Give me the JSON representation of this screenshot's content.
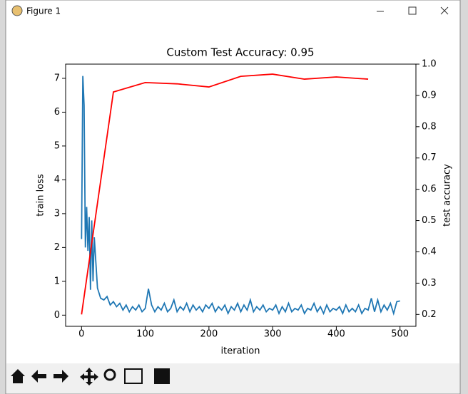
{
  "window": {
    "title": "Figure 1"
  },
  "chart_data": {
    "type": "line",
    "title": "Custom Test Accuracy: 0.95",
    "xlabel": "iteration",
    "ylabel": "train loss",
    "y2label": "test accuracy",
    "xlim": [
      -25,
      525
    ],
    "xticks": [
      0,
      100,
      200,
      300,
      400,
      500
    ],
    "ylim": [
      -0.33,
      7.42
    ],
    "yticks": [
      0,
      1,
      2,
      3,
      4,
      5,
      6,
      7
    ],
    "y2lim": [
      0.162,
      1.0
    ],
    "y2ticks": [
      0.2,
      0.3,
      0.4,
      0.5,
      0.6,
      0.7,
      0.8,
      0.9,
      {
        "value": 1,
        "label": "1.0"
      }
    ],
    "series": [
      {
        "color": "#1f77b4",
        "x": [
          0,
          2,
          4,
          6,
          8,
          10,
          12,
          14,
          16,
          18,
          20,
          25,
          30,
          35,
          40,
          45,
          50,
          55,
          60,
          65,
          70,
          75,
          80,
          85,
          90,
          95,
          100,
          105,
          110,
          115,
          120,
          125,
          130,
          135,
          140,
          145,
          150,
          155,
          160,
          165,
          170,
          175,
          180,
          185,
          190,
          195,
          200,
          205,
          210,
          215,
          220,
          225,
          230,
          235,
          240,
          245,
          250,
          255,
          260,
          265,
          270,
          275,
          280,
          285,
          290,
          295,
          300,
          305,
          310,
          315,
          320,
          325,
          330,
          335,
          340,
          345,
          350,
          355,
          360,
          365,
          370,
          375,
          380,
          385,
          390,
          395,
          400,
          405,
          410,
          415,
          420,
          425,
          430,
          435,
          440,
          445,
          450,
          455,
          460,
          465,
          470,
          475,
          480,
          485,
          490,
          495,
          500
        ],
        "values": [
          2.25,
          7.07,
          6.2,
          2.0,
          3.2,
          1.9,
          2.9,
          0.75,
          2.8,
          1.0,
          2.3,
          0.8,
          0.5,
          0.45,
          0.55,
          0.3,
          0.4,
          0.25,
          0.35,
          0.15,
          0.3,
          0.1,
          0.25,
          0.15,
          0.3,
          0.1,
          0.2,
          0.78,
          0.3,
          0.1,
          0.25,
          0.15,
          0.35,
          0.1,
          0.2,
          0.45,
          0.1,
          0.25,
          0.15,
          0.35,
          0.1,
          0.3,
          0.15,
          0.25,
          0.1,
          0.3,
          0.2,
          0.35,
          0.1,
          0.25,
          0.15,
          0.3,
          0.05,
          0.25,
          0.15,
          0.35,
          0.1,
          0.3,
          0.15,
          0.45,
          0.1,
          0.25,
          0.15,
          0.3,
          0.1,
          0.2,
          0.15,
          0.3,
          0.05,
          0.25,
          0.1,
          0.35,
          0.1,
          0.2,
          0.15,
          0.3,
          0.05,
          0.2,
          0.15,
          0.35,
          0.1,
          0.25,
          0.05,
          0.3,
          0.1,
          0.2,
          0.15,
          0.25,
          0.05,
          0.3,
          0.1,
          0.2,
          0.1,
          0.3,
          0.05,
          0.2,
          0.15,
          0.5,
          0.1,
          0.45,
          0.1,
          0.3,
          0.15,
          0.35,
          0.05,
          0.4,
          0.42
        ]
      },
      {
        "color": "#ff0000",
        "axis": "y2",
        "x": [
          0,
          50,
          100,
          150,
          200,
          250,
          300,
          350,
          400,
          450
        ],
        "values": [
          0.2,
          0.911,
          0.941,
          0.937,
          0.927,
          0.961,
          0.968,
          0.952,
          0.959,
          0.952
        ]
      }
    ]
  }
}
